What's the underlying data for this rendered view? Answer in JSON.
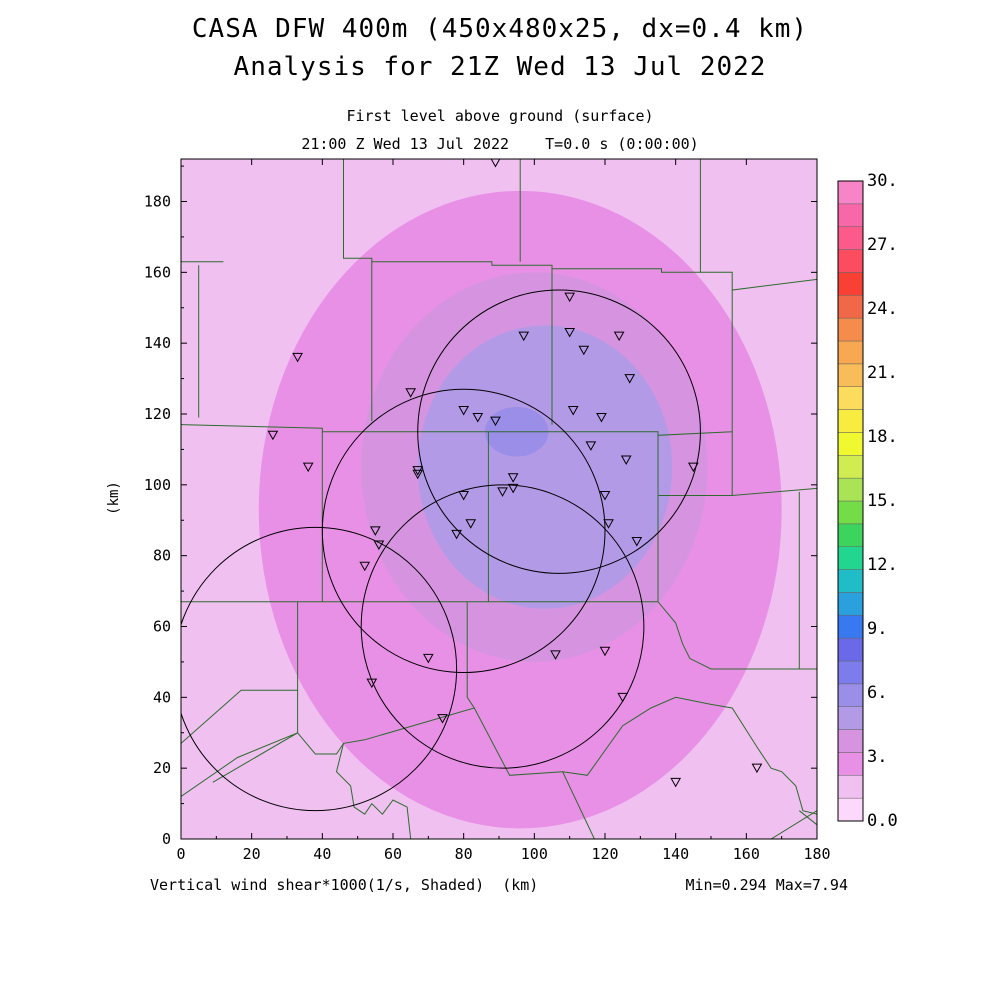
{
  "header": {
    "title": "CASA DFW 400m (450x480x25, dx=0.4 km)",
    "subtitle": "Analysis for 21Z Wed 13 Jul 2022",
    "level": "First level above ground (surface)",
    "time": "21:00 Z Wed 13 Jul 2022    T=0.0 s (0:00:00)"
  },
  "footer": {
    "variable": "Vertical wind shear*1000(1/s, Shaded)  (km)",
    "minmax": "Min=0.294 Max=7.94"
  },
  "colors": {
    "county_lines": "#2e6b2e",
    "background_shade": "#f0c8f0",
    "max_shade": "#8080f0"
  },
  "chart_data": {
    "type": "heatmap",
    "title": "",
    "xlabel": "",
    "ylabel": "(km)",
    "xlim": [
      0,
      180
    ],
    "ylim": [
      0,
      192
    ],
    "x_ticks": [
      0,
      20,
      40,
      60,
      80,
      100,
      120,
      140,
      160,
      180
    ],
    "y_ticks": [
      0,
      20,
      40,
      60,
      80,
      100,
      120,
      140,
      160,
      180
    ],
    "grid": false,
    "colorbar": {
      "labels": [
        "0.0",
        "3.",
        "6.",
        "9.",
        "12.",
        "15.",
        "18.",
        "21.",
        "24.",
        "27.",
        "30."
      ],
      "min": 0,
      "max": 30,
      "step": 1.5,
      "colors": [
        "#fcd8fc",
        "#f0c0f0",
        "#e890e6",
        "#d694e0",
        "#b29ae6",
        "#9a8ee8",
        "#7c7cec",
        "#6a6ae8",
        "#3878f0",
        "#2aa0dc",
        "#20bcc8",
        "#22d690",
        "#3cd45c",
        "#74dc46",
        "#a8e456",
        "#d0ec50",
        "#f0f830",
        "#f8ec40",
        "#fcdc5c",
        "#f8bc58",
        "#f8a850",
        "#f48c4c",
        "#f06848",
        "#f84034",
        "#fc4c60",
        "#fc5a8a",
        "#f868a8",
        "#f884c8"
      ]
    },
    "shear_field": [
      {
        "level": 1.5,
        "center": [
          91,
          100
        ],
        "radius": [
          95,
          95
        ]
      },
      {
        "level": 3.0,
        "center": [
          96,
          93
        ],
        "radius": [
          74,
          90
        ]
      },
      {
        "level": 4.5,
        "center": [
          100,
          105
        ],
        "radius": [
          49,
          55
        ]
      },
      {
        "level": 6.0,
        "center": [
          103,
          105
        ],
        "radius": [
          36,
          40
        ]
      },
      {
        "level": 7.5,
        "center": [
          95,
          115
        ],
        "radius": [
          9,
          7
        ]
      }
    ],
    "radar_coverage": [
      {
        "center": [
          107,
          115
        ],
        "radius": 40
      },
      {
        "center": [
          80,
          87
        ],
        "radius": 40
      },
      {
        "center": [
          38,
          48
        ],
        "radius": 40
      },
      {
        "center": [
          91,
          60
        ],
        "radius": 40
      }
    ],
    "stations": [
      [
        89,
        191
      ],
      [
        110,
        153
      ],
      [
        97,
        142
      ],
      [
        110,
        143
      ],
      [
        114,
        138
      ],
      [
        124,
        142
      ],
      [
        127,
        130
      ],
      [
        33,
        136
      ],
      [
        65,
        126
      ],
      [
        80,
        121
      ],
      [
        84,
        119
      ],
      [
        89,
        118
      ],
      [
        111,
        121
      ],
      [
        119,
        119
      ],
      [
        116,
        111
      ],
      [
        126,
        107
      ],
      [
        26,
        114
      ],
      [
        36,
        105
      ],
      [
        67,
        104
      ],
      [
        67,
        103
      ],
      [
        94,
        102
      ],
      [
        91,
        98
      ],
      [
        94,
        99
      ],
      [
        80,
        97
      ],
      [
        120,
        97
      ],
      [
        121,
        89
      ],
      [
        129,
        84
      ],
      [
        55,
        87
      ],
      [
        56,
        83
      ],
      [
        82,
        89
      ],
      [
        78,
        86
      ],
      [
        52,
        77
      ],
      [
        70,
        51
      ],
      [
        106,
        52
      ],
      [
        120,
        53
      ],
      [
        54,
        44
      ],
      [
        125,
        40
      ],
      [
        74,
        34
      ],
      [
        145,
        105
      ],
      [
        140,
        16
      ],
      [
        163,
        20
      ]
    ],
    "county_lines": [
      [
        [
          0,
          163
        ],
        [
          12,
          163
        ]
      ],
      [
        [
          46,
          192
        ],
        [
          46,
          164
        ],
        [
          54,
          164
        ],
        [
          54,
          163
        ],
        [
          88,
          163
        ],
        [
          88,
          162
        ],
        [
          105,
          162
        ],
        [
          105,
          161
        ],
        [
          136,
          161
        ],
        [
          136,
          160
        ],
        [
          156,
          160
        ],
        [
          156,
          155
        ],
        [
          180,
          158
        ]
      ],
      [
        [
          96,
          192
        ],
        [
          96,
          163
        ]
      ],
      [
        [
          147,
          192
        ],
        [
          147,
          160
        ]
      ],
      [
        [
          5,
          162
        ],
        [
          5,
          119
        ]
      ],
      [
        [
          54,
          163
        ],
        [
          54,
          118
        ]
      ],
      [
        [
          105,
          162
        ],
        [
          105,
          117
        ]
      ],
      [
        [
          0,
          117
        ],
        [
          40,
          116
        ],
        [
          40,
          115
        ],
        [
          135,
          115
        ],
        [
          135,
          114
        ],
        [
          156,
          115
        ]
      ],
      [
        [
          156,
          155
        ],
        [
          156,
          97
        ],
        [
          180,
          99
        ]
      ],
      [
        [
          40,
          115
        ],
        [
          40,
          67
        ]
      ],
      [
        [
          87,
          115
        ],
        [
          87,
          67
        ]
      ],
      [
        [
          135,
          114
        ],
        [
          135,
          67
        ]
      ],
      [
        [
          135,
          97
        ],
        [
          156,
          97
        ]
      ],
      [
        [
          175,
          98
        ],
        [
          175,
          48
        ]
      ],
      [
        [
          0,
          67
        ],
        [
          40,
          67
        ],
        [
          135,
          67
        ],
        [
          140,
          61
        ],
        [
          142,
          55
        ],
        [
          144,
          51
        ],
        [
          150,
          48
        ],
        [
          180,
          48
        ]
      ],
      [
        [
          33,
          67
        ],
        [
          33,
          42
        ],
        [
          17,
          42
        ],
        [
          0,
          27
        ]
      ],
      [
        [
          33,
          42
        ],
        [
          33,
          30
        ],
        [
          9,
          16
        ]
      ],
      [
        [
          0,
          12
        ],
        [
          16,
          23
        ],
        [
          33,
          30
        ],
        [
          38,
          24
        ],
        [
          44,
          24
        ],
        [
          46,
          27
        ],
        [
          52,
          28
        ],
        [
          83,
          37
        ],
        [
          81,
          40
        ],
        [
          81,
          67
        ]
      ],
      [
        [
          46,
          27
        ],
        [
          44,
          19
        ],
        [
          48,
          15
        ],
        [
          49,
          9
        ],
        [
          52,
          7
        ],
        [
          54,
          10
        ],
        [
          57,
          7
        ],
        [
          60,
          11
        ],
        [
          64,
          9
        ],
        [
          65,
          0
        ]
      ],
      [
        [
          83,
          37
        ],
        [
          93,
          18
        ],
        [
          108,
          19
        ],
        [
          115,
          18
        ],
        [
          125,
          32
        ],
        [
          133,
          37
        ],
        [
          140,
          40
        ],
        [
          150,
          38
        ],
        [
          156,
          37
        ],
        [
          163,
          26
        ],
        [
          167,
          20
        ],
        [
          170,
          19
        ],
        [
          174,
          15
        ],
        [
          176,
          8
        ],
        [
          180,
          7
        ]
      ],
      [
        [
          108,
          19
        ],
        [
          117,
          0
        ]
      ],
      [
        [
          167,
          0
        ],
        [
          180,
          8
        ]
      ],
      [
        [
          175,
          8
        ],
        [
          180,
          4
        ]
      ]
    ]
  }
}
